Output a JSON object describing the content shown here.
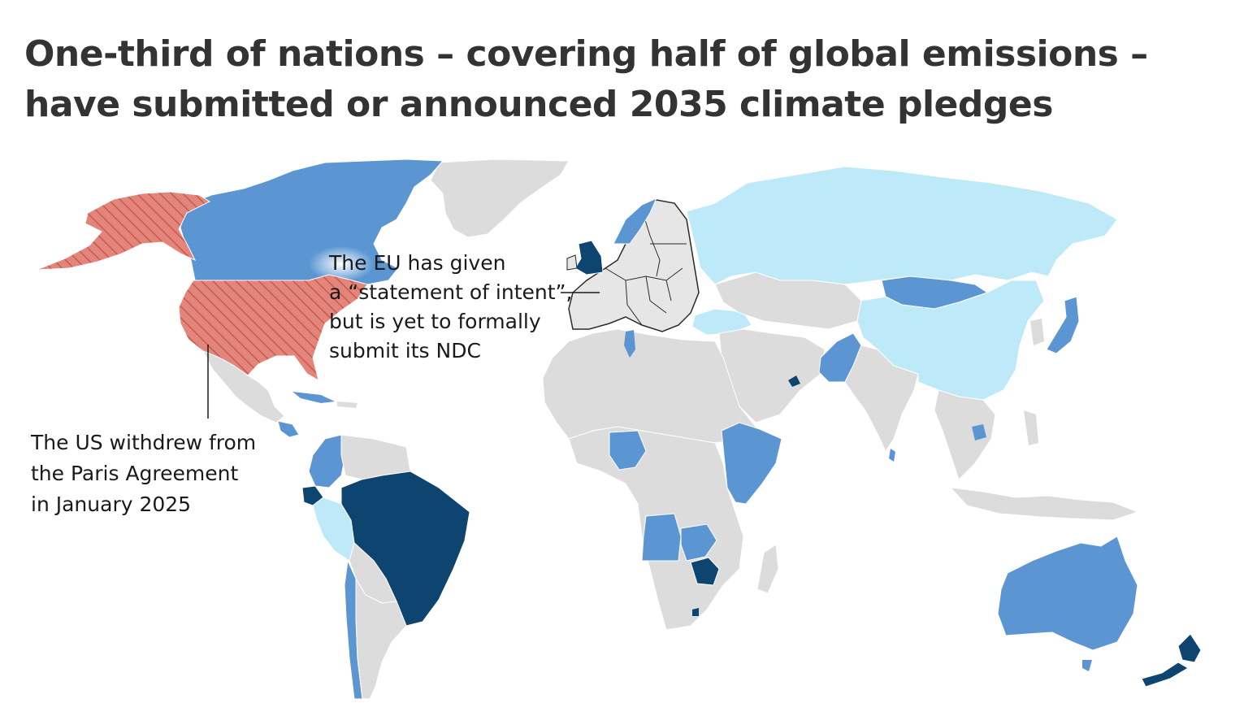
{
  "title": {
    "line1": "One-third of nations – covering half of global emissions –",
    "line2": "have submitted or announced 2035 climate pledges"
  },
  "annotations": {
    "eu": {
      "line1": "The EU has given",
      "line2": "a “statement of intent”,",
      "line3": "but is yet to formally",
      "line4": "submit its NDC"
    },
    "us": {
      "line1": "The US withdrew from",
      "line2": "the Paris Agreement",
      "line3": "in January 2025"
    }
  },
  "colors": {
    "no_pledge": "#dcdcdc",
    "light_blue": "#bde9f9",
    "mid_blue": "#5b96d2",
    "dark_blue": "#0d4470",
    "us_withdrawn_fill": "#e3857b",
    "us_withdrawn_hatch": "#c65a50",
    "eu_fill": "#e6e6e6",
    "eu_border": "#2b2b2b",
    "title": "#333333"
  },
  "map_categories": {
    "dark_blue": [
      "United Kingdom",
      "Brazil",
      "Ecuador",
      "Zimbabwe",
      "New Zealand",
      "Switzerland",
      "United Arab Emirates",
      "Lesotho"
    ],
    "mid_blue": [
      "Canada",
      "Japan",
      "Australia",
      "Mongolia",
      "Pakistan",
      "Nigeria",
      "Angola",
      "Zambia",
      "Ethiopia",
      "Somalia",
      "Kenya",
      "Norway",
      "Colombia",
      "Chile",
      "Cambodia",
      "Sri Lanka",
      "Tunisia",
      "Cuba",
      "Honduras"
    ],
    "light_blue": [
      "Russia",
      "China",
      "Peru",
      "Maldives"
    ],
    "withdrawn_hatched": [
      "United States"
    ],
    "eu_statement_of_intent": [
      "European Union"
    ]
  }
}
